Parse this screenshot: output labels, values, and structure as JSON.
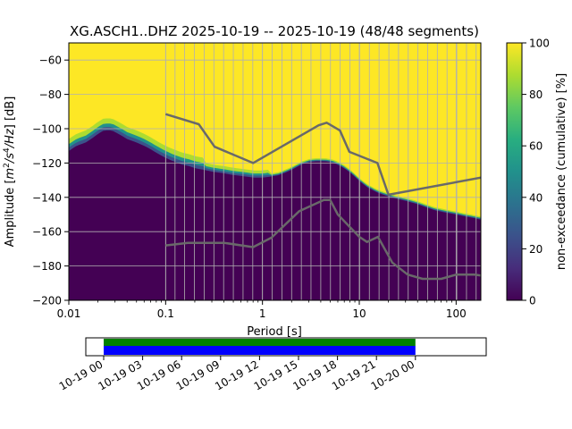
{
  "chart_data": {
    "type": "heatmap",
    "title": "XG.ASCH1..DHZ   2025-10-19 -- 2025-10-19  (48/48 segments)",
    "xlabel": "Period [s]",
    "ylabel_prefix": "Amplitude [",
    "ylabel_unit_m": "m",
    "ylabel_unit_m_exp": "2",
    "ylabel_unit_s": "/s",
    "ylabel_unit_s_exp": "4",
    "ylabel_unit_hz": "/Hz",
    "ylabel_suffix": "] [dB]",
    "xscale": "log",
    "xlim": [
      0.01,
      180
    ],
    "ylim": [
      -200,
      -50
    ],
    "x_ticks": [
      {
        "value": 0.01,
        "label": "0.01"
      },
      {
        "value": 0.1,
        "label": "0.1"
      },
      {
        "value": 1,
        "label": "1"
      },
      {
        "value": 10,
        "label": "10"
      },
      {
        "value": 100,
        "label": "100"
      }
    ],
    "y_ticks": [
      {
        "value": -60,
        "label": "−60"
      },
      {
        "value": -80,
        "label": "−80"
      },
      {
        "value": -100,
        "label": "−100"
      },
      {
        "value": -120,
        "label": "−120"
      },
      {
        "value": -140,
        "label": "−140"
      },
      {
        "value": -160,
        "label": "−160"
      },
      {
        "value": -180,
        "label": "−180"
      },
      {
        "value": -200,
        "label": "−200"
      }
    ],
    "period_gridlines": [
      0.1,
      0.125,
      0.157,
      0.198,
      0.25,
      0.315,
      0.397,
      0.5,
      0.63,
      0.794,
      1,
      1.26,
      1.59,
      2,
      2.52,
      3.17,
      4,
      5.04,
      6.35,
      8,
      10.08,
      12.7,
      16,
      20.2,
      25.4,
      32,
      40.3,
      50.8,
      64,
      80.6,
      101.6,
      128,
      161
    ],
    "psd_median_db": {
      "periods": [
        0.01,
        0.012,
        0.015,
        0.018,
        0.02,
        0.023,
        0.025,
        0.028,
        0.03,
        0.035,
        0.04,
        0.05,
        0.06,
        0.07,
        0.08,
        0.1,
        0.12,
        0.15,
        0.18,
        0.2,
        0.25,
        0.3,
        0.4,
        0.5,
        0.6,
        0.7,
        0.8,
        0.9,
        1.0,
        1.2,
        1.5,
        2,
        2.5,
        3,
        3.5,
        4,
        4.5,
        5,
        5.5,
        6,
        7,
        8,
        9,
        10,
        12,
        15,
        20,
        25,
        30,
        40,
        50,
        60,
        80,
        100,
        120,
        150,
        180
      ],
      "values": [
        -113,
        -110,
        -108,
        -105,
        -103,
        -101,
        -101,
        -101,
        -102,
        -104,
        -106,
        -108,
        -110,
        -112,
        -114,
        -117,
        -119,
        -121,
        -122,
        -123,
        -124,
        -125,
        -126,
        -127,
        -127.5,
        -128,
        -128.5,
        -128.5,
        -128.5,
        -128,
        -127,
        -124,
        -121,
        -119.5,
        -119,
        -119,
        -119,
        -119.5,
        -120,
        -121,
        -123,
        -125.5,
        -128,
        -130.5,
        -134,
        -137,
        -139.5,
        -141,
        -142,
        -144,
        -146,
        -147.5,
        -149,
        -150,
        -151,
        -152,
        -153
      ]
    },
    "noise_model_high": {
      "periods": [
        0.1,
        0.22,
        0.32,
        0.8,
        3.8,
        4.6,
        6.3,
        7.9,
        15.4,
        20.0,
        180
      ],
      "values": [
        -91.5,
        -97.4,
        -110.5,
        -120.0,
        -98.0,
        -96.5,
        -101.0,
        -113.5,
        -120.0,
        -138.5,
        -128.5
      ]
    },
    "noise_model_low": {
      "periods": [
        0.1,
        0.17,
        0.4,
        0.8,
        1.24,
        2.4,
        4.3,
        5.0,
        6.0,
        10.0,
        12.0,
        15.6,
        21.9,
        31.6,
        45.0,
        70.0,
        101.0,
        154.0,
        180
      ],
      "values": [
        -168.0,
        -166.5,
        -166.5,
        -169.0,
        -163.5,
        -148.0,
        -141.5,
        -141.5,
        -150.0,
        -163.0,
        -166.0,
        -163.0,
        -178.0,
        -185.0,
        -187.5,
        -187.5,
        -185.0,
        -185.0,
        -185.5
      ]
    },
    "colorbar": {
      "label": "non-exceedance (cumulative) [%]",
      "range": [
        0,
        100
      ],
      "ticks": [
        {
          "value": 0,
          "label": "0"
        },
        {
          "value": 20,
          "label": "20"
        },
        {
          "value": 40,
          "label": "40"
        },
        {
          "value": 60,
          "label": "60"
        },
        {
          "value": 80,
          "label": "80"
        },
        {
          "value": 100,
          "label": "100"
        }
      ],
      "colors": [
        "#440154",
        "#472d7b",
        "#3b528b",
        "#2c728e",
        "#21918c",
        "#28ae80",
        "#5ec962",
        "#addc30",
        "#fde725"
      ]
    },
    "coverage": {
      "span_hours": [
        0,
        28
      ],
      "data_hours": [
        0,
        24.3
      ],
      "ticks": [
        {
          "value": 0,
          "label": "10-19 00"
        },
        {
          "value": 3,
          "label": "10-19 03"
        },
        {
          "value": 6,
          "label": "10-19 06"
        },
        {
          "value": 9,
          "label": "10-19 09"
        },
        {
          "value": 12,
          "label": "10-19 12"
        },
        {
          "value": 15,
          "label": "10-19 15"
        },
        {
          "value": 18,
          "label": "10-19 18"
        },
        {
          "value": 21,
          "label": "10-19 21"
        },
        {
          "value": 24,
          "label": "10-20 00"
        }
      ],
      "processed_color": "#008000",
      "data_color": "#0000ff"
    },
    "colors": {
      "background": "#ffffff",
      "grid": "#b0b0b0",
      "model_line": "#696969",
      "axis": "#000000"
    }
  }
}
